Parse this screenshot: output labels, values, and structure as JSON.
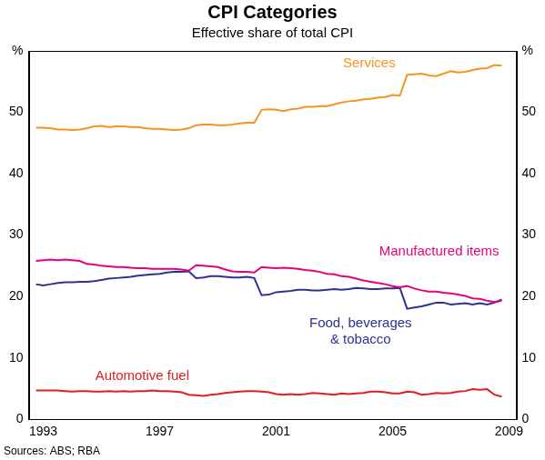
{
  "chart_data": {
    "type": "line",
    "title": "CPI Categories",
    "subtitle": "Effective share of total CPI",
    "source": "Sources: ABS; RBA",
    "grid": false,
    "x": [
      1992.75,
      1993,
      1993.25,
      1993.5,
      1993.75,
      1994,
      1994.25,
      1994.5,
      1994.75,
      1995,
      1995.25,
      1995.5,
      1995.75,
      1996,
      1996.25,
      1996.5,
      1996.75,
      1997,
      1997.25,
      1997.5,
      1997.75,
      1998,
      1998.25,
      1998.5,
      1998.75,
      1999,
      1999.25,
      1999.5,
      1999.75,
      2000,
      2000.25,
      2000.5,
      2000.75,
      2001,
      2001.25,
      2001.5,
      2001.75,
      2002,
      2002.25,
      2002.5,
      2002.75,
      2003,
      2003.25,
      2003.5,
      2003.75,
      2004,
      2004.25,
      2004.5,
      2004.75,
      2005,
      2005.25,
      2005.5,
      2005.75,
      2006,
      2006.25,
      2006.5,
      2006.75,
      2007,
      2007.25,
      2007.5,
      2007.75,
      2008,
      2008.25,
      2008.5,
      2008.75
    ],
    "xlim": [
      1992.5,
      2009.25
    ],
    "xticks": [
      1993,
      1997,
      2001,
      2005,
      2009
    ],
    "ylim": [
      0,
      60
    ],
    "yticks": [
      0,
      10,
      20,
      30,
      40,
      50,
      {
        "value": 60,
        "label": "%"
      }
    ],
    "y2lim": [
      0,
      60
    ],
    "y2ticks": [
      0,
      10,
      20,
      30,
      40,
      50,
      {
        "value": 60,
        "label": "%"
      }
    ],
    "series": [
      {
        "name": "Services",
        "color": "#f7941d",
        "values": [
          47.5,
          47.5,
          47.4,
          47.2,
          47.2,
          47.1,
          47.2,
          47.4,
          47.7,
          47.8,
          47.6,
          47.7,
          47.7,
          47.6,
          47.6,
          47.4,
          47.3,
          47.3,
          47.2,
          47.1,
          47.2,
          47.4,
          47.9,
          48.0,
          48.0,
          47.9,
          47.9,
          48.0,
          48.2,
          48.3,
          48.3,
          50.4,
          50.5,
          50.4,
          50.2,
          50.5,
          50.6,
          50.9,
          50.9,
          51.0,
          51.0,
          51.3,
          51.6,
          51.8,
          51.9,
          52.1,
          52.2,
          52.4,
          52.5,
          52.8,
          52.7,
          56.1,
          56.2,
          56.3,
          56.0,
          55.9,
          56.3,
          56.7,
          56.5,
          56.6,
          56.9,
          57.1,
          57.2,
          57.7,
          57.6
        ]
      },
      {
        "name": "Manufactured items",
        "color": "#e5007d",
        "values": [
          25.8,
          25.9,
          26.0,
          25.9,
          26.0,
          25.9,
          25.8,
          25.3,
          25.2,
          25.0,
          24.9,
          24.8,
          24.8,
          24.7,
          24.6,
          24.6,
          24.5,
          24.5,
          24.5,
          24.5,
          24.4,
          24.2,
          25.1,
          25.0,
          24.9,
          24.8,
          24.4,
          24.1,
          24.0,
          24.0,
          23.9,
          24.8,
          24.7,
          24.6,
          24.7,
          24.6,
          24.5,
          24.3,
          24.2,
          24.0,
          23.7,
          23.6,
          23.3,
          23.2,
          22.9,
          22.6,
          22.4,
          22.2,
          22.0,
          21.7,
          21.5,
          21.7,
          21.3,
          21.0,
          20.8,
          20.8,
          20.6,
          20.5,
          20.3,
          20.1,
          19.7,
          19.6,
          19.3,
          19.1,
          19.3
        ]
      },
      {
        "name": "Food, beverages & tobacco",
        "color": "#2e3192",
        "values": [
          22.0,
          21.8,
          22.0,
          22.2,
          22.3,
          22.3,
          22.4,
          22.4,
          22.5,
          22.7,
          22.9,
          23.0,
          23.1,
          23.2,
          23.4,
          23.5,
          23.6,
          23.7,
          23.9,
          24.0,
          24.0,
          24.1,
          23.0,
          23.1,
          23.3,
          23.3,
          23.2,
          23.1,
          23.1,
          23.2,
          23.0,
          20.2,
          20.3,
          20.7,
          20.8,
          20.9,
          21.1,
          21.1,
          21.0,
          21.0,
          21.1,
          21.2,
          21.1,
          21.2,
          21.4,
          21.3,
          21.2,
          21.2,
          21.3,
          21.3,
          21.4,
          18.0,
          18.2,
          18.4,
          18.7,
          19.0,
          19.0,
          18.7,
          18.8,
          18.9,
          18.7,
          18.9,
          18.7,
          19.0,
          19.5
        ]
      },
      {
        "name": "Automotive fuel",
        "color": "#e31b23",
        "values": [
          4.7,
          4.7,
          4.7,
          4.7,
          4.6,
          4.5,
          4.6,
          4.6,
          4.5,
          4.5,
          4.6,
          4.5,
          4.6,
          4.5,
          4.6,
          4.6,
          4.7,
          4.6,
          4.6,
          4.5,
          4.4,
          4.0,
          3.9,
          3.8,
          4.0,
          4.1,
          4.3,
          4.4,
          4.5,
          4.6,
          4.6,
          4.5,
          4.4,
          4.1,
          4.0,
          4.1,
          4.0,
          4.1,
          4.3,
          4.2,
          4.1,
          4.0,
          4.2,
          4.1,
          4.2,
          4.3,
          4.5,
          4.5,
          4.4,
          4.2,
          4.2,
          4.5,
          4.4,
          4.0,
          4.1,
          4.3,
          4.2,
          4.3,
          4.5,
          4.6,
          4.9,
          4.8,
          4.9,
          4.0,
          3.7
        ]
      }
    ]
  }
}
